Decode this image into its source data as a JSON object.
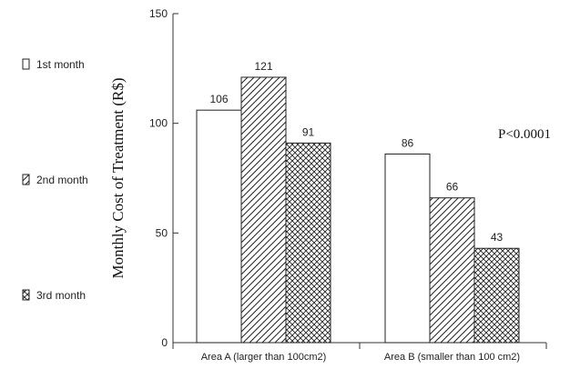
{
  "chart_data": {
    "type": "bar",
    "categories": [
      "Area A (larger than 100cm2)",
      "Area B (smaller than 100 cm2)"
    ],
    "series": [
      {
        "name": "1st month",
        "values": [
          106,
          86
        ],
        "pattern": "none"
      },
      {
        "name": "2nd month",
        "values": [
          121,
          66
        ],
        "pattern": "diagonal"
      },
      {
        "name": "3rd month",
        "values": [
          91,
          43
        ],
        "pattern": "crosshatch"
      }
    ],
    "title": "",
    "xlabel": "",
    "ylabel": "Monthly Cost of Treatment (R$)",
    "ylim": [
      0,
      150
    ],
    "yticks": [
      0,
      50,
      100,
      150
    ],
    "annotation": "P<0.0001",
    "legend_placement": "left",
    "grid": false
  }
}
